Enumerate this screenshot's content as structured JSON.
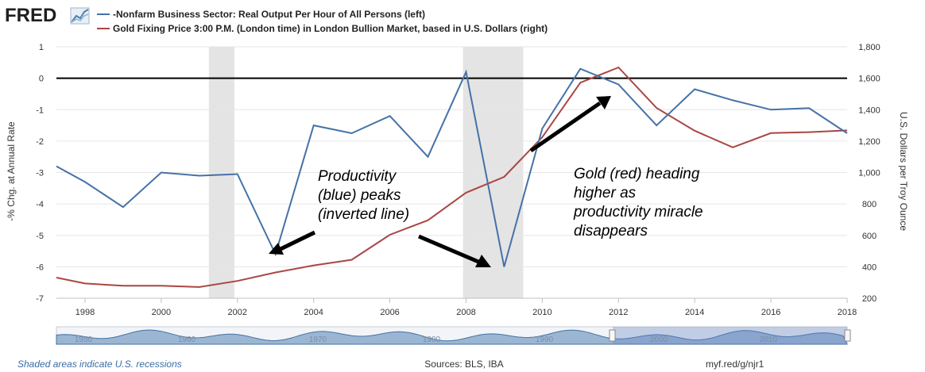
{
  "header": {
    "logo_text": "FRED",
    "legend": [
      {
        "label": "-Nonfarm Business Sector: Real Output Per Hour of All Persons (left)",
        "color": "#4572a7"
      },
      {
        "label": "Gold Fixing Price 3:00 P.M. (London time) in London Bullion Market, based in U.S. Dollars (right)",
        "color": "#aa4643"
      }
    ]
  },
  "chart_data": {
    "type": "line",
    "title": "",
    "y_left_label": "-% Chg. at Annual Rate",
    "y_right_label": "U.S. Dollars per Troy Ounce",
    "y_left_lim": [
      -7,
      1
    ],
    "y_left_inverted": true,
    "y_left_ticks": [
      "1",
      "0",
      "-1",
      "-2",
      "-3",
      "-4",
      "-5",
      "-6",
      "-7"
    ],
    "y_right_lim": [
      200,
      1800
    ],
    "y_right_ticks": [
      "200",
      "400",
      "600",
      "800",
      "1,000",
      "1,200",
      "1,400",
      "1,600",
      "1,800"
    ],
    "x_lim": [
      1997.25,
      2018
    ],
    "x_ticks": [
      "1998",
      "2000",
      "2002",
      "2004",
      "2006",
      "2008",
      "2010",
      "2012",
      "2014",
      "2016",
      "2018"
    ],
    "recessions": [
      [
        2001.25,
        2001.92
      ],
      [
        2007.92,
        2009.5
      ]
    ],
    "zero_line": 0,
    "series": [
      {
        "name": "-Nonfarm Business Sector: Real Output Per Hour of All Persons (left)",
        "axis": "left",
        "color": "#4572a7",
        "x": [
          1997.25,
          1998,
          1999,
          2000,
          2001,
          2002,
          2003,
          2004,
          2005,
          2006,
          2007,
          2008,
          2009,
          2010,
          2011,
          2012,
          2013,
          2014,
          2015,
          2016,
          2017,
          2018
        ],
        "y": [
          -2.8,
          -3.3,
          -4.1,
          -3.0,
          -3.1,
          -3.05,
          -5.6,
          -1.5,
          -1.75,
          -1.2,
          -2.5,
          0.2,
          -6.0,
          -1.6,
          0.3,
          -0.2,
          -1.5,
          -0.35,
          -0.7,
          -1.0,
          -0.95,
          -1.75
        ]
      },
      {
        "name": "Gold Fixing Price 3:00 P.M. (London time) in London Bullion Market, based in U.S. Dollars (right)",
        "axis": "right",
        "color": "#aa4643",
        "x": [
          1997.25,
          1998,
          1999,
          2000,
          2001,
          2002,
          2003,
          2004,
          2005,
          2006,
          2007,
          2008,
          2009,
          2010,
          2011,
          2012,
          2013,
          2014,
          2015,
          2016,
          2017,
          2018
        ],
        "y": [
          331,
          294,
          279,
          279,
          271,
          310,
          364,
          409,
          445,
          604,
          696,
          872,
          972,
          1225,
          1572,
          1669,
          1411,
          1266,
          1160,
          1251,
          1257,
          1268
        ]
      }
    ],
    "annotations": [
      {
        "lines": [
          "Productivity",
          "(blue) peaks",
          "(inverted line)"
        ]
      },
      {
        "lines": [
          "Gold (red) heading",
          "higher as",
          "productivity miracle",
          "disappears"
        ]
      }
    ]
  },
  "navigator": {
    "labels": [
      "1950",
      "1960",
      "1970",
      "1980",
      "1990",
      "2000",
      "2010"
    ]
  },
  "footer": {
    "note": "Shaded areas indicate U.S. recessions",
    "sources": "Sources: BLS, IBA",
    "url": "myf.red/g/njr1"
  }
}
